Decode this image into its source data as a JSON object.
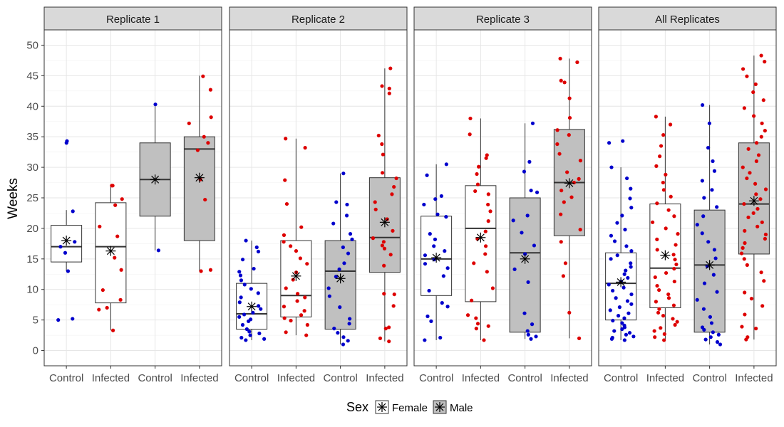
{
  "chart_data": {
    "type": "box",
    "ylabel": "Weeks",
    "ylim": [
      -2.5,
      52.5
    ],
    "yticks": [
      0,
      5,
      10,
      15,
      20,
      25,
      30,
      35,
      40,
      45,
      50
    ],
    "categories": [
      "Control",
      "Infected",
      "Control",
      "Infected"
    ],
    "group_sex": [
      "Female",
      "Female",
      "Male",
      "Male"
    ],
    "legend": {
      "title": "Sex",
      "items": [
        "Female",
        "Male"
      ],
      "position": "bottom"
    },
    "colors": {
      "control_points": "#0000cc",
      "infected_points": "#dd0000",
      "female_fill": "#ffffff",
      "male_fill": "#c0c0c0",
      "strip": "#d9d9d9"
    },
    "panels": [
      {
        "title": "Replicate 1",
        "boxes": [
          {
            "q1": 14.5,
            "median": 17,
            "q3": 20.5,
            "whisker_low": 13,
            "whisker_high": 23,
            "mean": 18,
            "points": [
              5,
              5.2,
              13,
              16,
              17,
              17.8,
              22.8,
              34,
              34.3
            ]
          },
          {
            "q1": 7.8,
            "median": 17,
            "q3": 24.2,
            "whisker_low": 3.3,
            "whisker_high": 27,
            "mean": 16.3,
            "points": [
              3.3,
              6.7,
              7,
              8.3,
              9.9,
              13.2,
              15.2,
              18.7,
              20.3,
              23.8,
              24.8,
              27,
              27
            ]
          },
          {
            "q1": 22,
            "median": 28,
            "q3": 34,
            "whisker_low": 16.4,
            "whisker_high": 40,
            "mean": 28,
            "points": [
              16.4,
              40.3
            ]
          },
          {
            "q1": 18,
            "median": 33,
            "q3": 35,
            "whisker_low": 13,
            "whisker_high": 45,
            "mean": 28.3,
            "points": [
              13,
              13.2,
              24.7,
              28,
              32.8,
              34,
              35,
              37.2,
              38.2,
              42.7,
              44.9
            ]
          }
        ]
      },
      {
        "title": "Replicate 2",
        "boxes": [
          {
            "q1": 3.5,
            "median": 6,
            "q3": 11,
            "whisker_low": 1.7,
            "whisker_high": 18,
            "mean": 7.2,
            "points": [
              1.7,
              1.9,
              2.1,
              2.5,
              2.8,
              3.1,
              3.5,
              4.2,
              4.8,
              5.1,
              5.5,
              5.9,
              6.2,
              6.8,
              7.3,
              7.9,
              8.7,
              9.4,
              10.1,
              10.8,
              11.5,
              12.3,
              12.9,
              13.4,
              14.9,
              16.2,
              16.9,
              18
            ]
          },
          {
            "q1": 5.5,
            "median": 9,
            "q3": 18,
            "whisker_low": 2.5,
            "whisker_high": 34.7,
            "mean": 12.2,
            "points": [
              2.5,
              3,
              4.2,
              4.9,
              5.3,
              5.8,
              6.5,
              7.2,
              8.1,
              8.7,
              9.3,
              10.2,
              11.6,
              12.8,
              14.2,
              15.1,
              16.3,
              17.1,
              17.8,
              18.9,
              20.2,
              24,
              27.9,
              33.2,
              34.7
            ]
          },
          {
            "q1": 3.5,
            "median": 13,
            "q3": 18,
            "whisker_low": 1,
            "whisker_high": 29,
            "mean": 11.8,
            "points": [
              1,
              1.6,
              2.2,
              2.9,
              3.6,
              4.4,
              5.2,
              7.1,
              8.9,
              10.2,
              12.1,
              13.3,
              14.3,
              15.9,
              16.9,
              18.2,
              19.1,
              20.8,
              22.1,
              23.9,
              24.3,
              29
            ]
          },
          {
            "q1": 12.8,
            "median": 18.5,
            "q3": 28.3,
            "whisker_low": 1.5,
            "whisker_high": 46.2,
            "mean": 21,
            "points": [
              1.5,
              2,
              3.6,
              3.8,
              7.3,
              9.2,
              9.3,
              13.9,
              15.7,
              16.7,
              17.2,
              17.8,
              18.4,
              19.6,
              21.5,
              23.1,
              24.3,
              25.6,
              26.8,
              28.2,
              29.1,
              32.1,
              33.8,
              35.2,
              42.1,
              42.9,
              43.3,
              46.2
            ]
          }
        ]
      },
      {
        "title": "Replicate 3",
        "boxes": [
          {
            "q1": 9,
            "median": 15,
            "q3": 22,
            "whisker_low": 1.7,
            "whisker_high": 30.5,
            "mean": 15.2,
            "points": [
              1.7,
              2.1,
              4.8,
              5.6,
              7.2,
              7.8,
              9.8,
              12.2,
              13.5,
              14.2,
              14.9,
              15.6,
              16.3,
              17.1,
              18.2,
              19.1,
              21.9,
              22.3,
              23.9,
              24.8,
              25.3,
              28.7,
              30.5
            ]
          },
          {
            "q1": 8,
            "median": 20,
            "q3": 27,
            "whisker_low": 1.7,
            "whisker_high": 38,
            "mean": 18.5,
            "points": [
              1.7,
              3.6,
              4,
              4.4,
              5.3,
              5.8,
              8.2,
              10.2,
              12.9,
              14.3,
              15.8,
              17.1,
              18.3,
              19.5,
              21.2,
              22.8,
              23.9,
              25.6,
              26.1,
              27.2,
              28.9,
              30.1,
              31.5,
              32,
              35.4,
              38
            ]
          },
          {
            "q1": 3,
            "median": 16,
            "q3": 25,
            "whisker_low": 1.9,
            "whisker_high": 37.2,
            "mean": 15,
            "points": [
              1.9,
              2.3,
              2.6,
              3.2,
              4.3,
              6.1,
              11.2,
              13.3,
              15.8,
              17.2,
              19.3,
              21.3,
              22.1,
              25.9,
              26.2,
              29.3,
              30.9,
              37.2
            ]
          },
          {
            "q1": 18.8,
            "median": 27.5,
            "q3": 36.2,
            "whisker_low": 2,
            "whisker_high": 47.8,
            "mean": 27.4,
            "points": [
              2,
              6.2,
              12.2,
              14.3,
              17.8,
              19.8,
              22.3,
              24.3,
              25.1,
              26.2,
              27.5,
              28.1,
              29.2,
              31.1,
              32.2,
              33.8,
              35.3,
              36.1,
              38.1,
              41.3,
              43.9,
              44.2,
              47.2,
              47.8
            ]
          }
        ]
      },
      {
        "title": "All Replicates",
        "boxes": [
          {
            "q1": 5,
            "median": 11,
            "q3": 16,
            "whisker_low": 1.7,
            "whisker_high": 30,
            "mean": 11.2,
            "points": [
              1.7,
              1.9,
              2.1,
              2.3,
              2.6,
              2.9,
              3.2,
              3.5,
              3.8,
              4.1,
              4.5,
              4.9,
              5.3,
              5.7,
              6.1,
              6.6,
              7.1,
              7.6,
              8.1,
              8.6,
              9.2,
              9.8,
              10.3,
              10.8,
              11.3,
              11.9,
              12.5,
              13.1,
              13.7,
              14.3,
              15,
              15.6,
              16.3,
              17.1,
              17.9,
              18.8,
              19.8,
              20.9,
              22.1,
              23.4,
              24.9,
              26.5,
              28.2,
              30,
              34,
              34.3
            ]
          },
          {
            "q1": 7,
            "median": 13.5,
            "q3": 24,
            "whisker_low": 1.7,
            "whisker_high": 38.3,
            "mean": 15.6,
            "points": [
              1.7,
              2.2,
              2.7,
              3.2,
              3.7,
              4.2,
              4.7,
              5.2,
              5.7,
              6.2,
              6.8,
              7.4,
              8,
              8.6,
              9.2,
              9.9,
              10.6,
              11.3,
              12,
              12.7,
              13.4,
              14.1,
              14.9,
              15.7,
              16.5,
              17.3,
              18.2,
              19.1,
              20,
              21,
              22,
              23,
              24.1,
              25.2,
              26.3,
              27.5,
              28.8,
              30.2,
              31.8,
              33.5,
              35.3,
              37,
              38.3
            ]
          },
          {
            "q1": 3,
            "median": 14,
            "q3": 23,
            "whisker_low": 1,
            "whisker_high": 40.2,
            "mean": 14,
            "points": [
              1,
              1.4,
              1.8,
              2.2,
              2.6,
              3,
              3.4,
              3.8,
              4.5,
              5.5,
              6.8,
              8.3,
              9.6,
              11,
              12.4,
              13.8,
              15.1,
              16.5,
              17.8,
              19.2,
              20.6,
              22,
              23.5,
              25,
              26.3,
              27.8,
              29.4,
              31,
              33.2,
              37.2,
              40.2
            ]
          },
          {
            "q1": 15.8,
            "median": 24,
            "q3": 34,
            "whisker_low": 1.8,
            "whisker_high": 48.3,
            "mean": 24.5,
            "points": [
              1.8,
              2.2,
              3.6,
              3.9,
              5.9,
              7.3,
              8.5,
              9.5,
              11.4,
              12.8,
              14,
              15,
              15.9,
              16.8,
              17.6,
              18.3,
              19,
              19.6,
              20.3,
              21,
              21.8,
              22.5,
              23.2,
              24,
              24.8,
              25.6,
              26.4,
              27.3,
              28.2,
              29.1,
              30,
              31,
              32,
              33,
              34,
              35,
              36,
              37.2,
              38.4,
              39.7,
              41,
              42.3,
              43.6,
              44.9,
              46.1,
              47.3,
              48.3
            ]
          }
        ]
      }
    ]
  }
}
